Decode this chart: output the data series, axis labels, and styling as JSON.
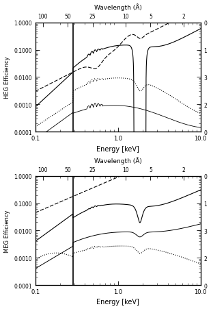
{
  "xlabel": "Energy [keV]",
  "ylabel_top": "HEG Efficiency",
  "ylabel_bot": "MEG Efficiency",
  "wavelength_label": "Wavelength (Å)",
  "xlim": [
    0.1,
    10.0
  ],
  "ylim": [
    0.0001,
    1.0
  ],
  "wavelength_ticks_A": [
    100,
    50,
    25,
    10,
    5,
    2
  ],
  "ytick_labels": [
    "0.0001",
    "0.0010",
    "0.0100",
    "0.1000",
    "1.0000"
  ],
  "ytick_vals": [
    0.0001,
    0.001,
    0.01,
    0.1,
    1.0
  ],
  "xtick_vals": [
    0.1,
    1.0,
    10.0
  ],
  "xtick_labels": [
    "0.1",
    "1.0",
    "10.0"
  ],
  "bg_color": "#f0f0f0",
  "lw": 0.9,
  "vline_x": 0.285
}
